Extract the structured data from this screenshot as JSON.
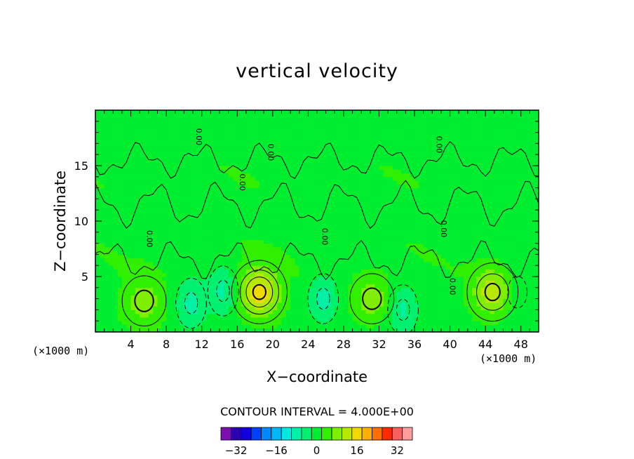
{
  "chart_data": {
    "type": "heatmap",
    "title": "vertical velocity",
    "xlabel": "X−coordinate",
    "ylabel": "Z−coordinate",
    "x_unit_label": "(×1000 m)",
    "xlim": [
      0,
      50
    ],
    "ylim": [
      0,
      20
    ],
    "x_ticks": [
      "4",
      "8",
      "12",
      "16",
      "20",
      "24",
      "28",
      "32",
      "36",
      "40",
      "44",
      "48"
    ],
    "x_tick_values": [
      4,
      8,
      12,
      16,
      20,
      24,
      28,
      32,
      36,
      40,
      44,
      48
    ],
    "y_ticks": [
      "5",
      "10",
      "15"
    ],
    "y_tick_values": [
      5,
      10,
      15
    ],
    "contour_interval_text": "CONTOUR INTERVAL = 4.000E+00",
    "contour_interval": 4,
    "contour_labels": [
      "0.00"
    ],
    "colorbar": {
      "levels": [
        -36,
        -32,
        -28,
        -24,
        -20,
        -16,
        -12,
        -8,
        -4,
        0,
        4,
        8,
        12,
        16,
        20,
        24,
        28,
        32,
        36
      ],
      "tick_labels": [
        "−32",
        "−16",
        "0",
        "16",
        "32"
      ],
      "tick_values": [
        -32,
        -16,
        0,
        16,
        32
      ],
      "colors": [
        "#7b0fb0",
        "#2a00b0",
        "#1200e0",
        "#0040ff",
        "#0088ff",
        "#00b8f8",
        "#00e8e0",
        "#00f0a8",
        "#00f070",
        "#00ee30",
        "#30f000",
        "#80ee00",
        "#b8e800",
        "#f0d800",
        "#ffb000",
        "#ff6e00",
        "#ff2a00",
        "#f86060",
        "#ff9e9e"
      ]
    },
    "features": [
      {
        "kind": "updraft",
        "x": 5.5,
        "z": 2.8,
        "max": 8
      },
      {
        "kind": "updraft",
        "x": 18.5,
        "z": 3.6,
        "max": 16
      },
      {
        "kind": "updraft",
        "x": 31.2,
        "z": 3.0,
        "max": 8
      },
      {
        "kind": "updraft",
        "x": 44.8,
        "z": 3.6,
        "max": 12
      },
      {
        "kind": "downdraft",
        "x": 10.8,
        "z": 2.6,
        "min": -8
      },
      {
        "kind": "downdraft",
        "x": 14.4,
        "z": 3.7,
        "min": -8
      },
      {
        "kind": "downdraft",
        "x": 25.7,
        "z": 3.0,
        "min": -8
      },
      {
        "kind": "downdraft",
        "x": 34.7,
        "z": 2.0,
        "min": -8
      },
      {
        "kind": "downdraft",
        "x": 47.6,
        "z": 3.6,
        "min": -4
      }
    ],
    "grid": false,
    "legend": "bottom-center colorbar"
  }
}
